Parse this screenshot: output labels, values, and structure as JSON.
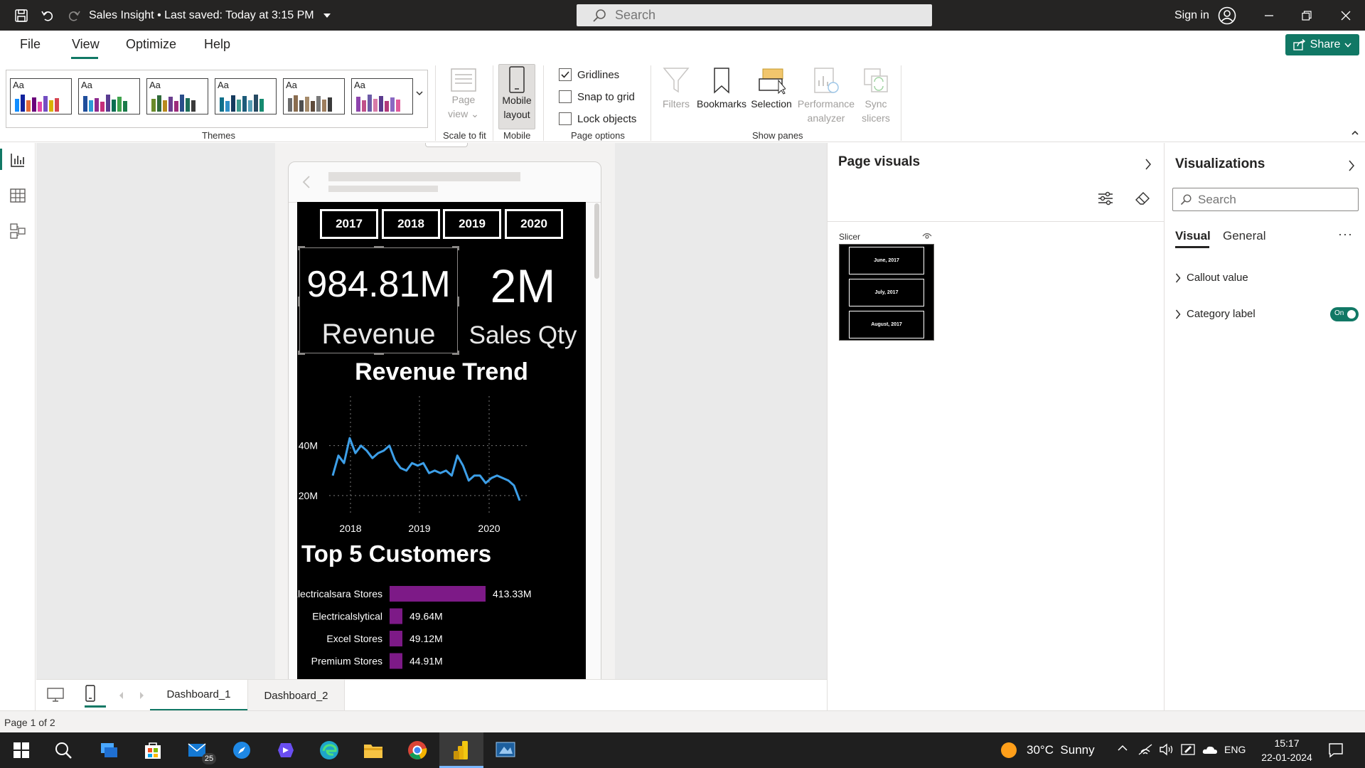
{
  "titlebar": {
    "doc_title": "Sales Insight",
    "saved_status": "Last saved: Today at 3:15 PM",
    "search_placeholder": "Search",
    "signin_label": "Sign in"
  },
  "menu": {
    "items": [
      "File",
      "View",
      "Optimize",
      "Help"
    ],
    "share_label": "Share"
  },
  "ribbon": {
    "themes_label": "Themes",
    "theme_tile_text": "Aa",
    "scale_label": "Scale to fit",
    "page_view_label": [
      "Page",
      "view"
    ],
    "mobile_group_label": "Mobile",
    "mobile_layout_label": [
      "Mobile",
      "layout"
    ],
    "page_options_label": "Page options",
    "gridlines_label": "Gridlines",
    "snap_label": "Snap to grid",
    "lock_label": "Lock objects",
    "show_panes_label": "Show panes",
    "filters_label": "Filters",
    "bookmarks_label": "Bookmarks",
    "selection_label": "Selection",
    "performance_label": [
      "Performance",
      "analyzer"
    ],
    "sync_label": [
      "Sync",
      "slicers"
    ],
    "gridlines_checked": true,
    "snap_checked": false,
    "lock_checked": false
  },
  "report": {
    "years": [
      "2017",
      "2018",
      "2019",
      "2020"
    ],
    "kpi_revenue_value": "984.81M",
    "kpi_revenue_label": "Revenue",
    "kpi_qty_value": "2M",
    "kpi_qty_label": "Sales Qty",
    "trend_title": "Revenue Trend",
    "top5_title": "Top 5 Customers"
  },
  "chart_data": [
    {
      "type": "line",
      "title": "Revenue Trend",
      "x_ticks": [
        "2018",
        "2019",
        "2020"
      ],
      "y_ticks": [
        "20M",
        "40M"
      ],
      "ylim": [
        10000000,
        55000000
      ],
      "grid": true,
      "color": "#3d9fe8",
      "series": [
        {
          "values": [
            28,
            36,
            33,
            43,
            37,
            40,
            38,
            35,
            37,
            38,
            40,
            34,
            31,
            30,
            33,
            32,
            33,
            29,
            30,
            29,
            30,
            28,
            36,
            32,
            26,
            28,
            28,
            25,
            27,
            28,
            27,
            26,
            24,
            18
          ]
        }
      ]
    },
    {
      "type": "bar",
      "title": "Top 5 Customers",
      "orientation": "horizontal",
      "color": "#7d1a87",
      "categories": [
        "Electricalsara Stores",
        "Electricalslytical",
        "Excel Stores",
        "Premium Stores"
      ],
      "values": [
        413.33,
        49.64,
        49.12,
        44.91
      ],
      "data_labels": [
        "413.33M",
        "49.64M",
        "49.12M",
        "44.91M"
      ]
    }
  ],
  "page_tabs": [
    "Dashboard_1",
    "Dashboard_2"
  ],
  "page_visuals": {
    "title": "Page visuals",
    "slicer_label": "Slicer",
    "slicer_items": [
      "June, 2017",
      "July, 2017",
      "August, 2017"
    ]
  },
  "visualizations": {
    "title": "Visualizations",
    "search_placeholder": "Search",
    "tabs": [
      "Visual",
      "General"
    ],
    "sections": [
      "Callout value",
      "Category label"
    ],
    "toggle_label": "On"
  },
  "status": {
    "page_indicator": "Page 1 of 2"
  },
  "taskbar": {
    "weather": "30°C  Sunny",
    "lang": "ENG",
    "time": "15:17",
    "date": "22-01-2024",
    "mail_badge": "25"
  },
  "colors": {
    "accent": "#117865",
    "bar": "#7d1a87",
    "line": "#3d9fe8",
    "titlebar": "#252423"
  }
}
